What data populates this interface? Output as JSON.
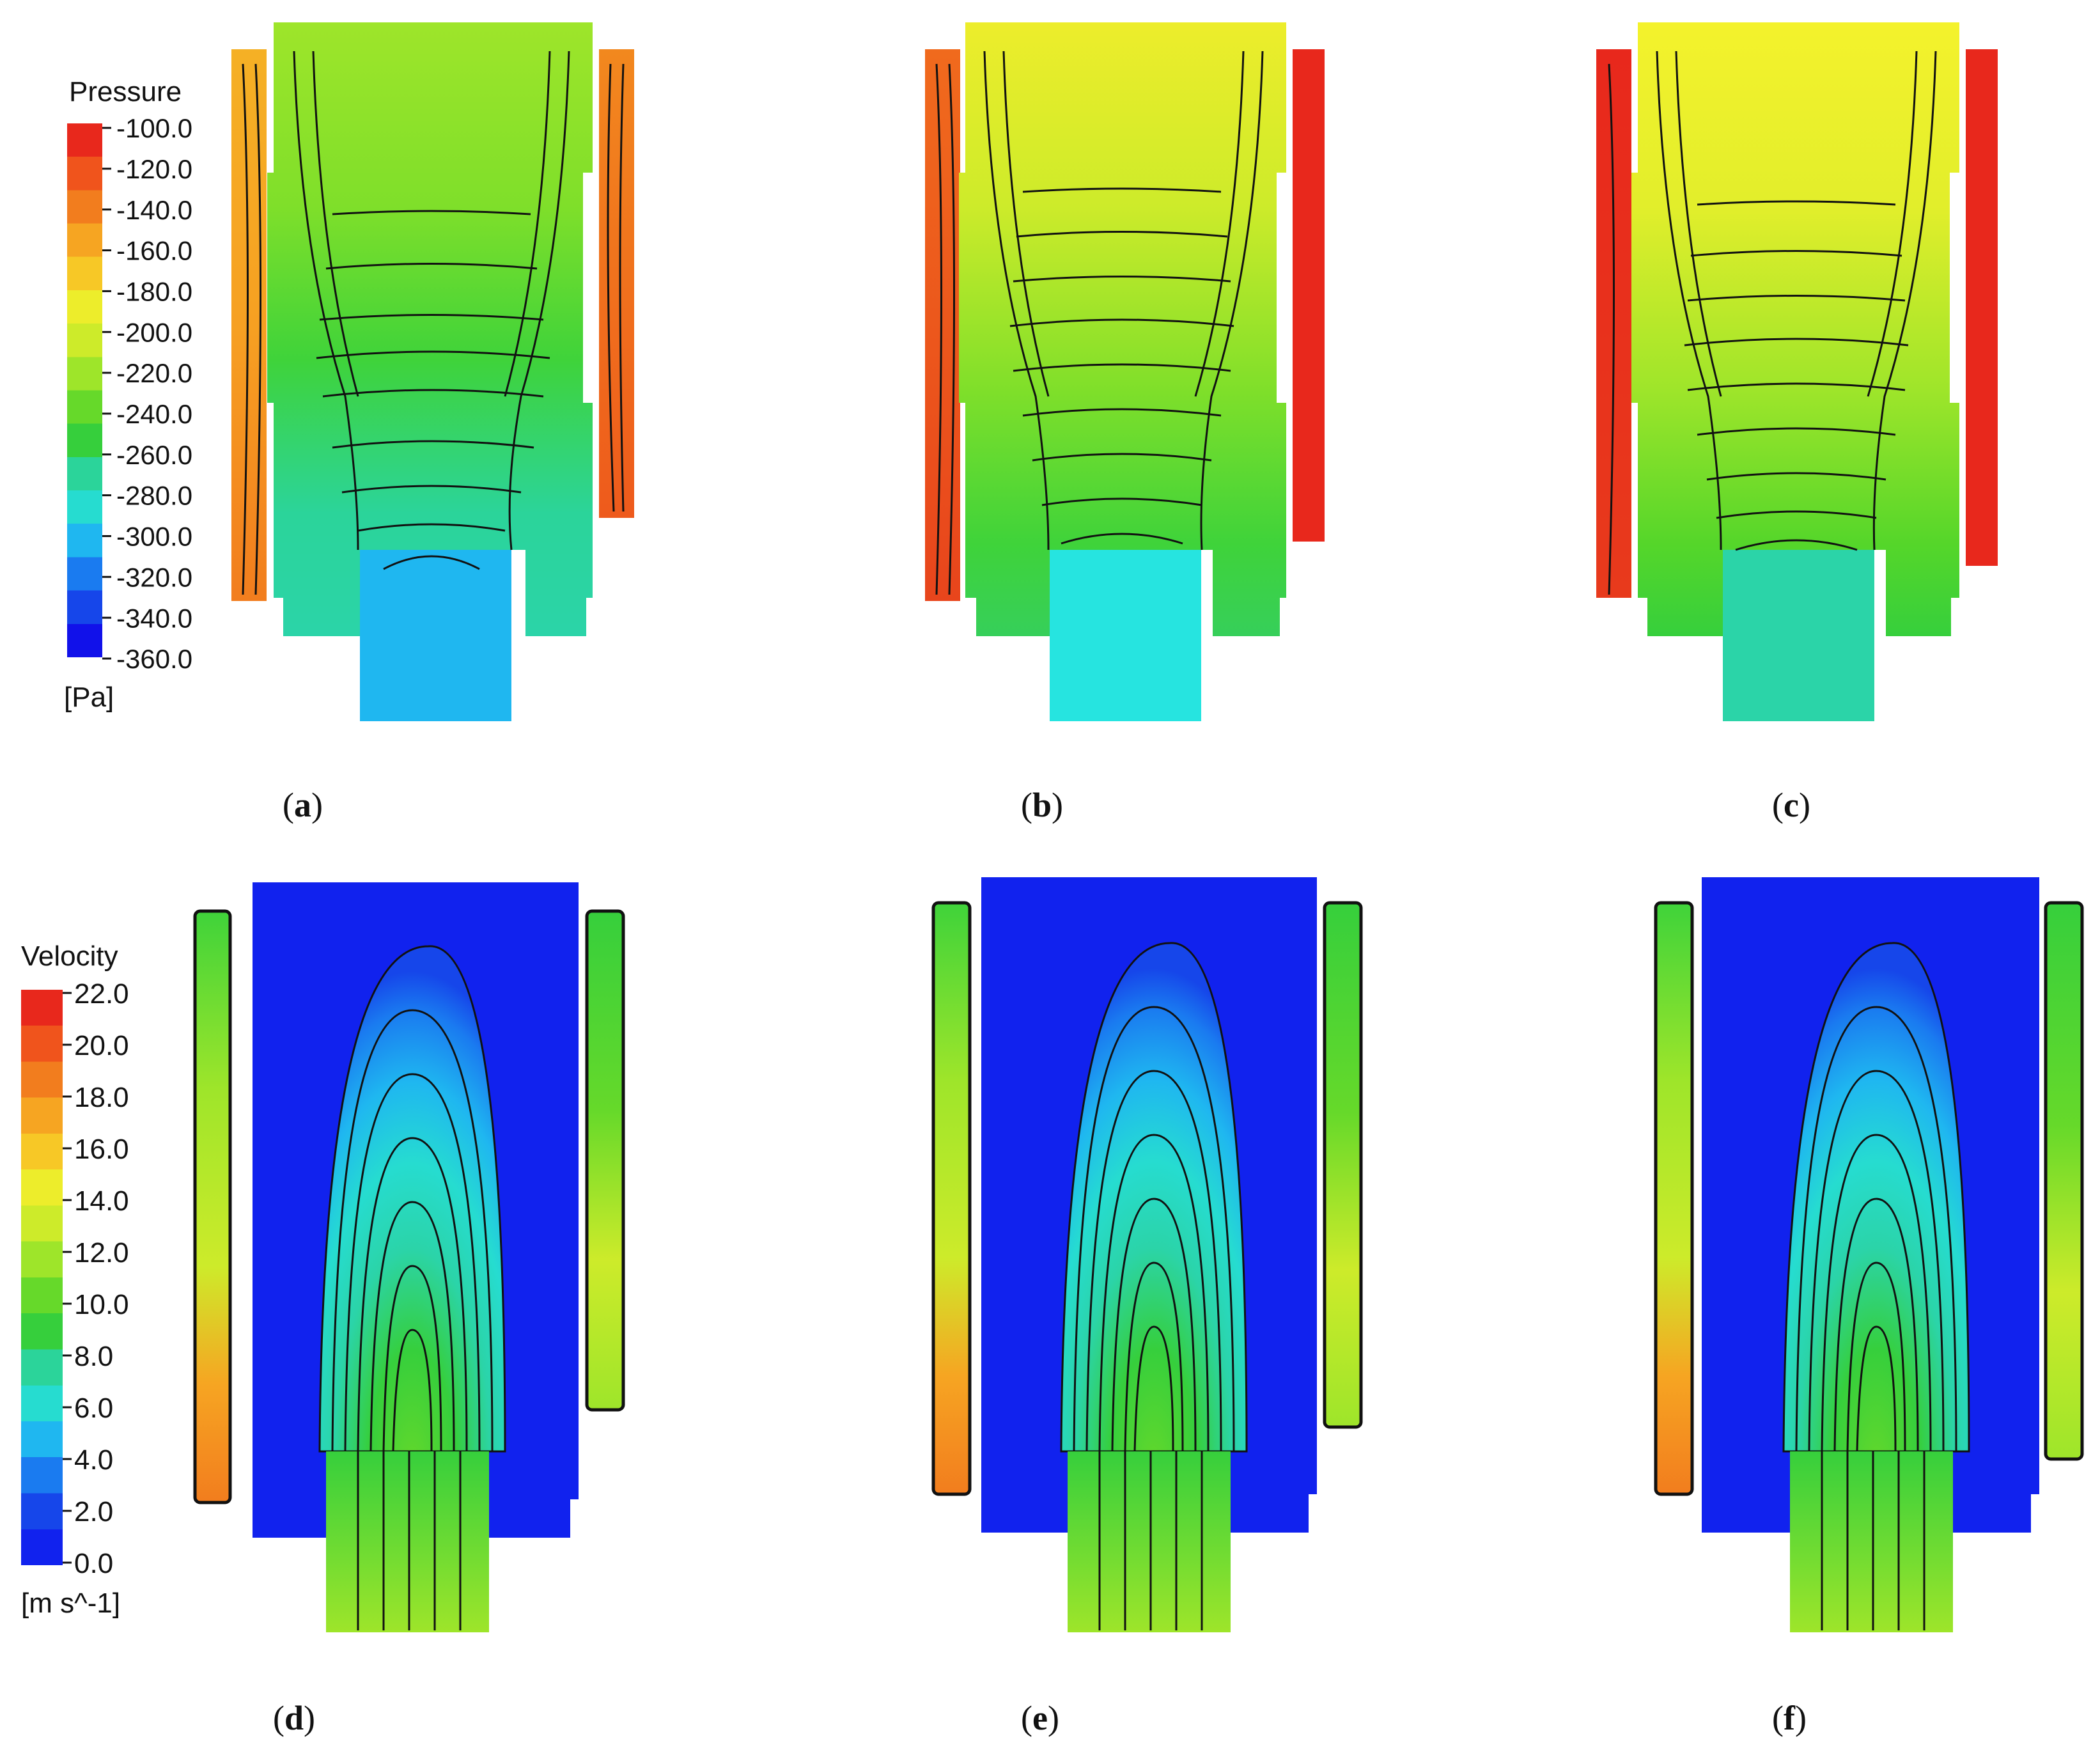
{
  "pressure_legend": {
    "title": "Pressure",
    "unit": "[Pa]",
    "ticks": [
      "-100.0",
      "-120.0",
      "-140.0",
      "-160.0",
      "-180.0",
      "-200.0",
      "-220.0",
      "-240.0",
      "-260.0",
      "-280.0",
      "-300.0",
      "-320.0",
      "-340.0",
      "-360.0"
    ]
  },
  "velocity_legend": {
    "title": "Velocity",
    "unit": "[m s^-1]",
    "ticks": [
      "22.0",
      "20.0",
      "18.0",
      "16.0",
      "14.0",
      "12.0",
      "10.0",
      "8.0",
      "6.0",
      "4.0",
      "2.0",
      "0.0"
    ]
  },
  "panels": [
    {
      "letter": "a",
      "field": "pressure"
    },
    {
      "letter": "b",
      "field": "pressure"
    },
    {
      "letter": "c",
      "field": "pressure"
    },
    {
      "letter": "d",
      "field": "velocity"
    },
    {
      "letter": "e",
      "field": "velocity"
    },
    {
      "letter": "f",
      "field": "velocity"
    }
  ],
  "colors": {
    "pressure_scale": [
      "#e8281c",
      "#f0541c",
      "#f27d1e",
      "#f6a522",
      "#f7c826",
      "#eded2b",
      "#cdeb2a",
      "#9ee52a",
      "#66d92a",
      "#36cf3c",
      "#2bd49a",
      "#26dcd0",
      "#1fb7f0",
      "#1a7bf0",
      "#1646ea",
      "#1111ea"
    ],
    "velocity_scale": [
      "#e8281c",
      "#f0541c",
      "#f27d1e",
      "#f6a522",
      "#f7c826",
      "#eded2b",
      "#cdeb2a",
      "#9ee52a",
      "#66d92a",
      "#36cf3c",
      "#2bd49a",
      "#26dcd0",
      "#1fb7f0",
      "#1a7bf0",
      "#1646ea",
      "#1122ee"
    ],
    "outline": "#111111"
  }
}
